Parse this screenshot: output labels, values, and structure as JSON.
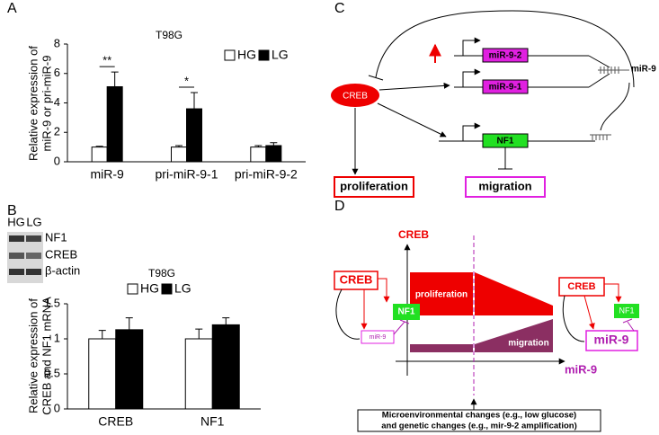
{
  "chart_data": [
    {
      "type": "bar",
      "panel": "A",
      "title": "T98G",
      "ylabel": [
        "Relative expression of",
        "miR-9 or pri-miR-9"
      ],
      "categories": [
        "miR-9",
        "pri-miR-9-1",
        "pri-miR-9-2"
      ],
      "series": [
        {
          "name": "HG",
          "color": "#ffffff",
          "values": [
            1.0,
            1.0,
            1.0
          ],
          "errors": [
            0.05,
            0.1,
            0.1
          ]
        },
        {
          "name": "LG",
          "color": "#000000",
          "values": [
            5.1,
            3.6,
            1.1
          ],
          "errors": [
            1.0,
            1.1,
            0.2
          ]
        }
      ],
      "annotations": [
        "**",
        "*"
      ],
      "ylim": [
        0,
        8
      ],
      "yticks": [
        0,
        2,
        4,
        6,
        8
      ],
      "legend": "upper right"
    },
    {
      "type": "bar",
      "panel": "B",
      "title": "T98G",
      "ylabel": [
        "Relative expression of",
        "CREB and NF1 mRNA"
      ],
      "categories": [
        "CREB",
        "NF1"
      ],
      "series": [
        {
          "name": "HG",
          "color": "#ffffff",
          "values": [
            1.0,
            1.0
          ],
          "errors": [
            0.12,
            0.14
          ]
        },
        {
          "name": "LG",
          "color": "#000000",
          "values": [
            1.13,
            1.2
          ],
          "errors": [
            0.17,
            0.1
          ]
        }
      ],
      "ylim": [
        0,
        1.5
      ],
      "yticks": [
        0,
        0.5,
        1,
        1.5
      ],
      "legend": "upper left"
    }
  ],
  "blot": {
    "lanes": [
      "HG",
      "LG"
    ],
    "bands": [
      "NF1",
      "CREB",
      "β-actin"
    ]
  },
  "diagram_c": {
    "panel": "C",
    "creb": "CREB",
    "mir92": "miR-9-2",
    "mir91": "miR-9-1",
    "mir9": "miR-9",
    "nf1": "NF1",
    "proliferation": "proliferation",
    "migration": "migration"
  },
  "diagram_d": {
    "panel": "D",
    "y_axis": "CREB",
    "x_axis": "miR-9",
    "proliferation": "proliferation",
    "migration": "migration",
    "left": {
      "creb": "CREB",
      "nf1": "NF1",
      "mir9": "miR-9"
    },
    "right": {
      "creb": "CREB",
      "nf1": "NF1",
      "mir9": "miR-9"
    },
    "note": [
      "Microenvironmental changes (e.g., low glucose)",
      "and genetic changes (e.g., mir-9-2 amplification)"
    ]
  }
}
